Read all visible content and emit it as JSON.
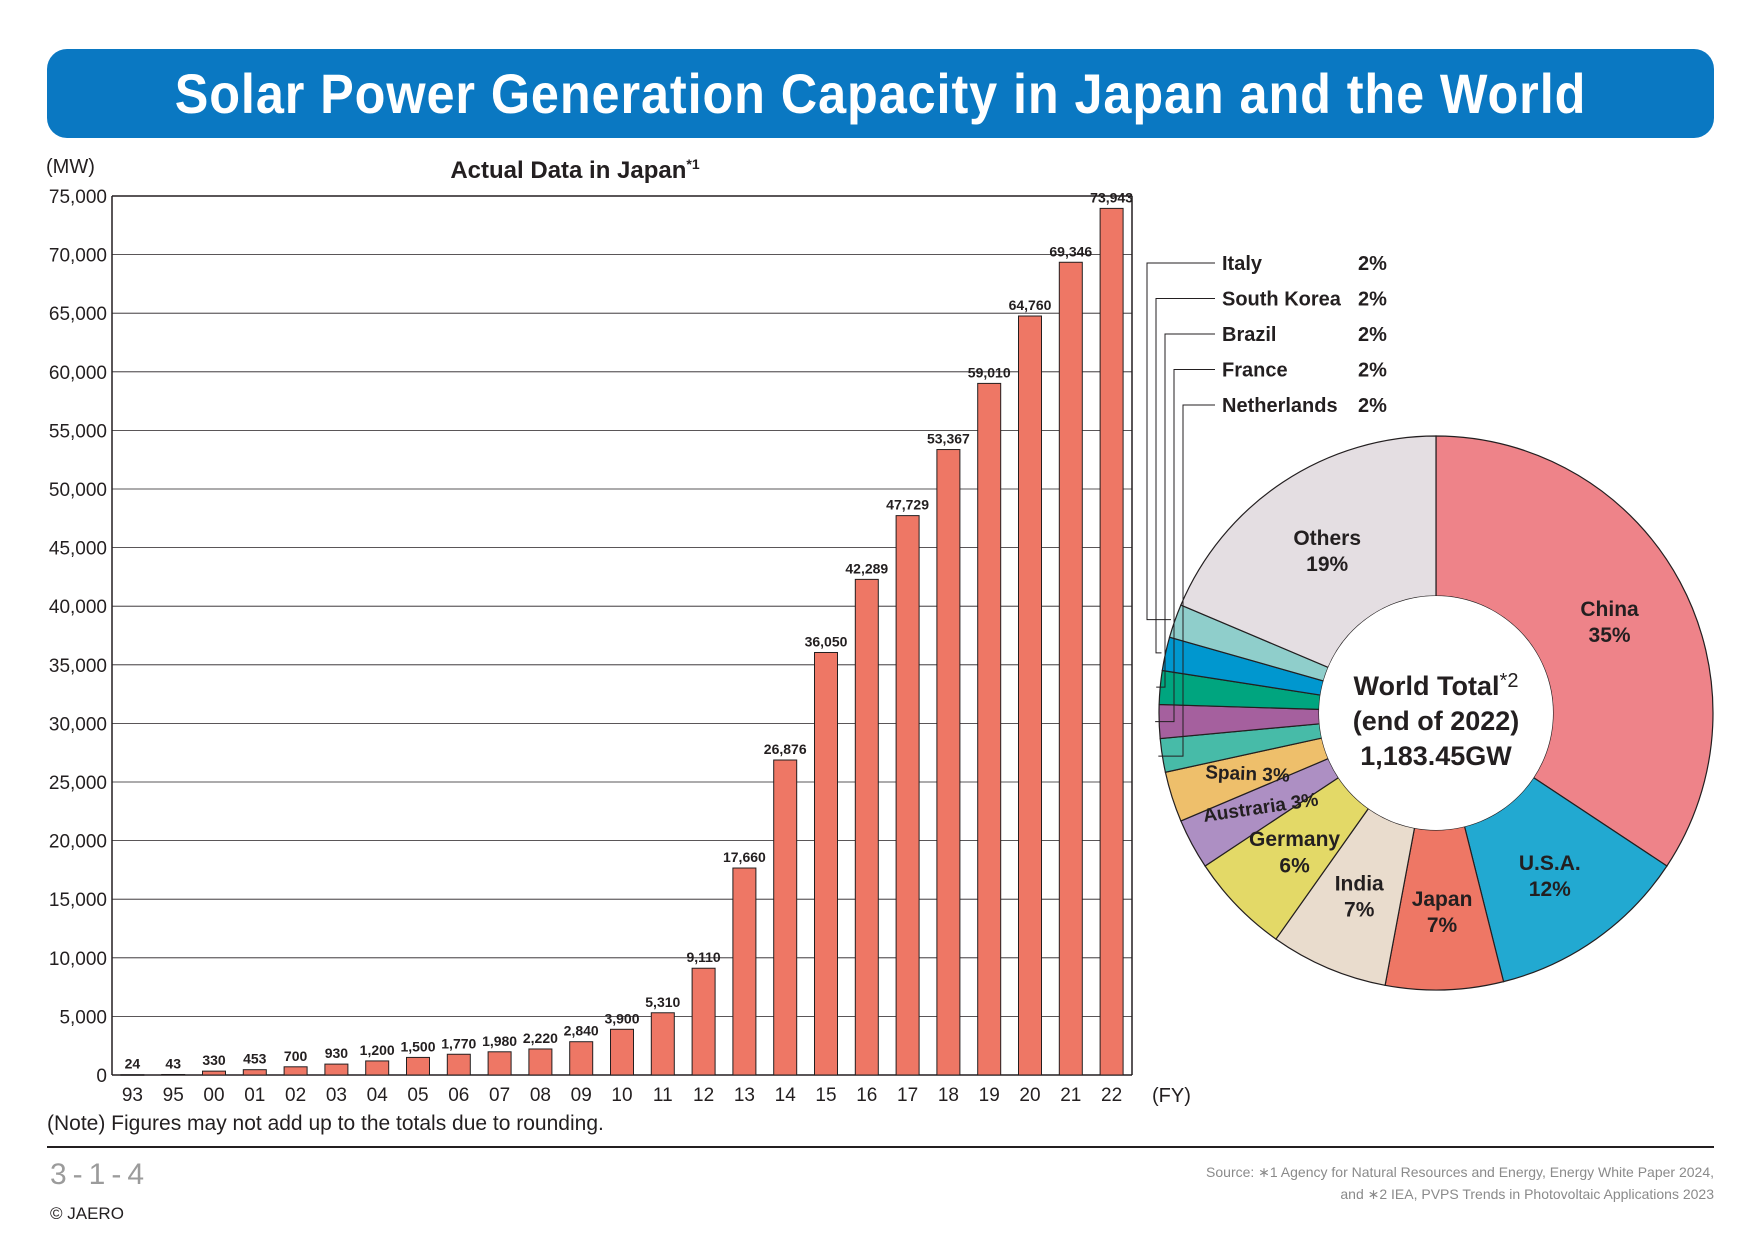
{
  "title": "Solar Power Generation Capacity in Japan and the World",
  "note": "(Note) Figures may not add up to the totals due to rounding.",
  "figure_code": "3-1-4",
  "copyright": "© JAERO",
  "source_line1": "Source: ∗1  Agency for Natural Resources and Energy, Energy White Paper 2024,",
  "source_line2": "and ∗2  IEA, PVPS Trends in Photovoltaic Applications 2023",
  "colors": {
    "banner": "#0a78c2",
    "bar": "#ee7765",
    "bar_stroke": "#231f20",
    "grid": "#231f20"
  },
  "chart_data": [
    {
      "type": "bar",
      "title": "Actual Data in Japan",
      "title_marker": "*1",
      "ylabel": "(MW)",
      "xlabel": "(FY)",
      "ylim": [
        0,
        75000
      ],
      "yticks": [
        0,
        5000,
        10000,
        15000,
        20000,
        25000,
        30000,
        35000,
        40000,
        45000,
        50000,
        55000,
        60000,
        65000,
        70000,
        75000
      ],
      "ytick_labels": [
        "0",
        "5,000",
        "10,000",
        "15,000",
        "20,000",
        "25,000",
        "30,000",
        "35,000",
        "40,000",
        "45,000",
        "50,000",
        "55,000",
        "60,000",
        "65,000",
        "70,000",
        "75,000"
      ],
      "grid": true,
      "categories": [
        "93",
        "95",
        "00",
        "01",
        "02",
        "03",
        "04",
        "05",
        "06",
        "07",
        "08",
        "09",
        "10",
        "11",
        "12",
        "13",
        "14",
        "15",
        "16",
        "17",
        "18",
        "19",
        "20",
        "21",
        "22"
      ],
      "values": [
        24,
        43,
        330,
        453,
        700,
        930,
        1200,
        1500,
        1770,
        1980,
        2220,
        2840,
        3900,
        5310,
        9110,
        17660,
        26876,
        36050,
        42289,
        47729,
        53367,
        59010,
        64760,
        69346,
        73943
      ],
      "value_labels": [
        "24",
        "43",
        "330",
        "453",
        "700",
        "930",
        "1,200",
        "1,500",
        "1,770",
        "1,980",
        "2,220",
        "2,840",
        "3,900",
        "5,310",
        "9,110",
        "17,660",
        "26,876",
        "36,050",
        "42,289",
        "47,729",
        "53,367",
        "59,010",
        "64,760",
        "69,346",
        "73,943"
      ]
    },
    {
      "type": "pie",
      "center_label": [
        "World Total",
        "(end of 2022)",
        "1,183.45GW"
      ],
      "center_marker": "*2",
      "slices": [
        {
          "name": "China",
          "percent": 35,
          "label": "35%",
          "color": "#ee8389"
        },
        {
          "name": "U.S.A.",
          "percent": 12,
          "label": "12%",
          "color": "#22a9d1"
        },
        {
          "name": "Japan",
          "percent": 7,
          "label": "7%",
          "color": "#ee7765"
        },
        {
          "name": "India",
          "percent": 7,
          "label": "7%",
          "color": "#e9dccd"
        },
        {
          "name": "Germany",
          "percent": 6,
          "label": "6%",
          "color": "#e3d967"
        },
        {
          "name": "Austraria",
          "percent": 3,
          "label": "3%",
          "color": "#ad8fc3"
        },
        {
          "name": "Spain",
          "percent": 3,
          "label": "3%",
          "color": "#eebf6b"
        },
        {
          "name": "Netherlands",
          "percent": 2,
          "label": "2%",
          "color": "#47bba8"
        },
        {
          "name": "France",
          "percent": 2,
          "label": "2%",
          "color": "#a5609e"
        },
        {
          "name": "Brazil",
          "percent": 2,
          "label": "2%",
          "color": "#00a57f"
        },
        {
          "name": "South Korea",
          "percent": 2,
          "label": "2%",
          "color": "#0097cf"
        },
        {
          "name": "Italy",
          "percent": 2,
          "label": "2%",
          "color": "#8fcecb"
        },
        {
          "name": "Others",
          "percent": 19,
          "label": "19%",
          "color": "#e4dee2"
        }
      ]
    }
  ]
}
